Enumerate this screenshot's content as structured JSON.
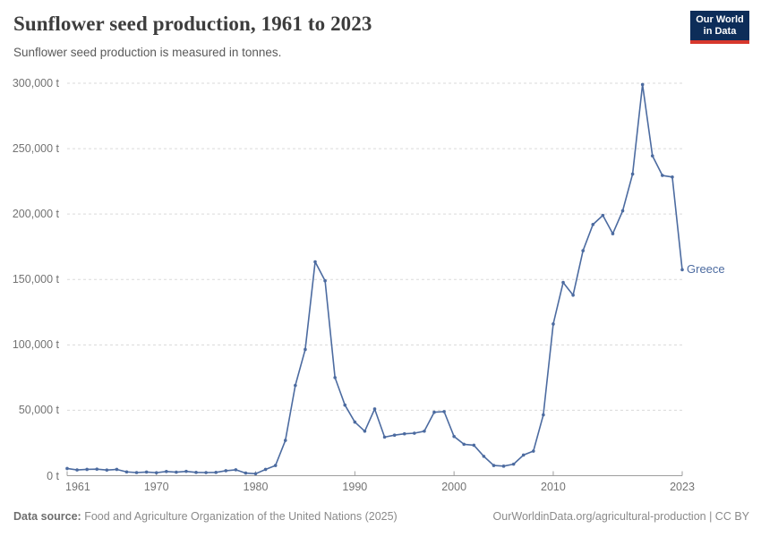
{
  "header": {
    "title": "Sunflower seed production, 1961 to 2023",
    "subtitle": "Sunflower seed production is measured in tonnes.",
    "logo": {
      "line1": "Our World",
      "line2": "in Data",
      "bg_color": "#0d2d59",
      "accent_color": "#d7382d"
    }
  },
  "chart_data": {
    "type": "line",
    "title": "Sunflower seed production, 1961 to 2023",
    "xlabel": "",
    "ylabel": "",
    "unit": "t",
    "grid": "horizontal-dashed",
    "legend_position": "end-of-line-label",
    "xlim": [
      1961,
      2023
    ],
    "ylim": [
      0,
      300000
    ],
    "x": {
      "start": 1961,
      "end": 2023,
      "step": 1
    },
    "x_ticks": [
      {
        "value": 1961,
        "label": "1961"
      },
      {
        "value": 1970,
        "label": "1970"
      },
      {
        "value": 1980,
        "label": "1980"
      },
      {
        "value": 1990,
        "label": "1990"
      },
      {
        "value": 2000,
        "label": "2000"
      },
      {
        "value": 2010,
        "label": "2010"
      },
      {
        "value": 2023,
        "label": "2023"
      }
    ],
    "y_ticks": [
      {
        "value": 0,
        "label": "0 t"
      },
      {
        "value": 50000,
        "label": "50,000 t"
      },
      {
        "value": 100000,
        "label": "100,000 t"
      },
      {
        "value": 150000,
        "label": "150,000 t"
      },
      {
        "value": 200000,
        "label": "200,000 t"
      },
      {
        "value": 250000,
        "label": "250,000 t"
      },
      {
        "value": 300000,
        "label": "300,000 t"
      }
    ],
    "series": [
      {
        "name": "Greece",
        "color": "#4c6ba0",
        "values": [
          5500,
          4400,
          4800,
          5000,
          4300,
          4800,
          2900,
          2400,
          2800,
          2300,
          3200,
          2700,
          3300,
          2500,
          2400,
          2500,
          3800,
          4500,
          2000,
          1500,
          4800,
          7800,
          27000,
          69000,
          96500,
          163500,
          149000,
          75000,
          54000,
          41000,
          34000,
          51000,
          29500,
          31000,
          32000,
          32500,
          34000,
          48500,
          49000,
          30000,
          24000,
          23300,
          14800,
          7800,
          7300,
          8800,
          15800,
          18800,
          46500,
          116000,
          147700,
          138000,
          172000,
          192000,
          199000,
          185000,
          202500,
          230600,
          299000,
          244500,
          229500,
          228300,
          157400
        ]
      }
    ]
  },
  "footer": {
    "source_label": "Data source:",
    "source_text": " Food and Agriculture Organization of the United Nations (2025)",
    "link_text": "OurWorldinData.org/agricultural-production | CC BY"
  }
}
